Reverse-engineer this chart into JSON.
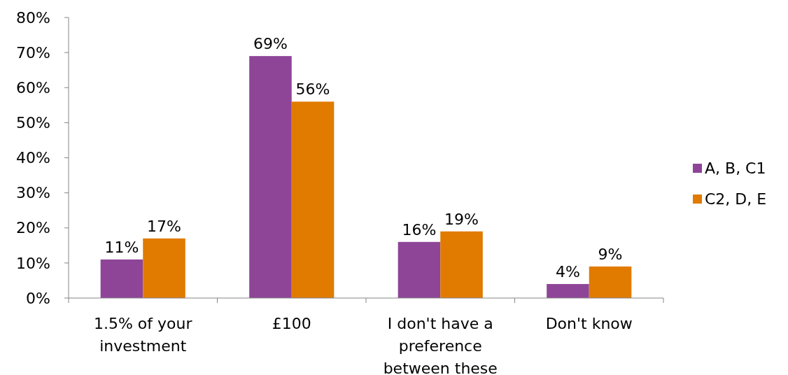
{
  "chart_data": {
    "type": "bar",
    "categories": [
      "1.5% of your investment",
      "£100",
      "I don't have a preference between these",
      "Don't know"
    ],
    "series": [
      {
        "name": "A, B, C1",
        "color": "#8e4597",
        "values": [
          11,
          69,
          16,
          4
        ],
        "value_labels": [
          "11%",
          "69%",
          "16%",
          "4%"
        ]
      },
      {
        "name": "C2, D, E",
        "color": "#e07b00",
        "values": [
          17,
          56,
          19,
          9
        ],
        "value_labels": [
          "17%",
          "56%",
          "19%",
          "9%"
        ]
      }
    ],
    "ylim": [
      0,
      80
    ],
    "yticks": [
      {
        "value": 0,
        "label": "0%"
      },
      {
        "value": 10,
        "label": "10%"
      },
      {
        "value": 20,
        "label": "20%"
      },
      {
        "value": 30,
        "label": "30%"
      },
      {
        "value": 40,
        "label": "40%"
      },
      {
        "value": 50,
        "label": "50%"
      },
      {
        "value": 60,
        "label": "60%"
      },
      {
        "value": 70,
        "label": "70%"
      },
      {
        "value": 80,
        "label": "80%"
      }
    ],
    "legend": "right",
    "grid": false
  }
}
